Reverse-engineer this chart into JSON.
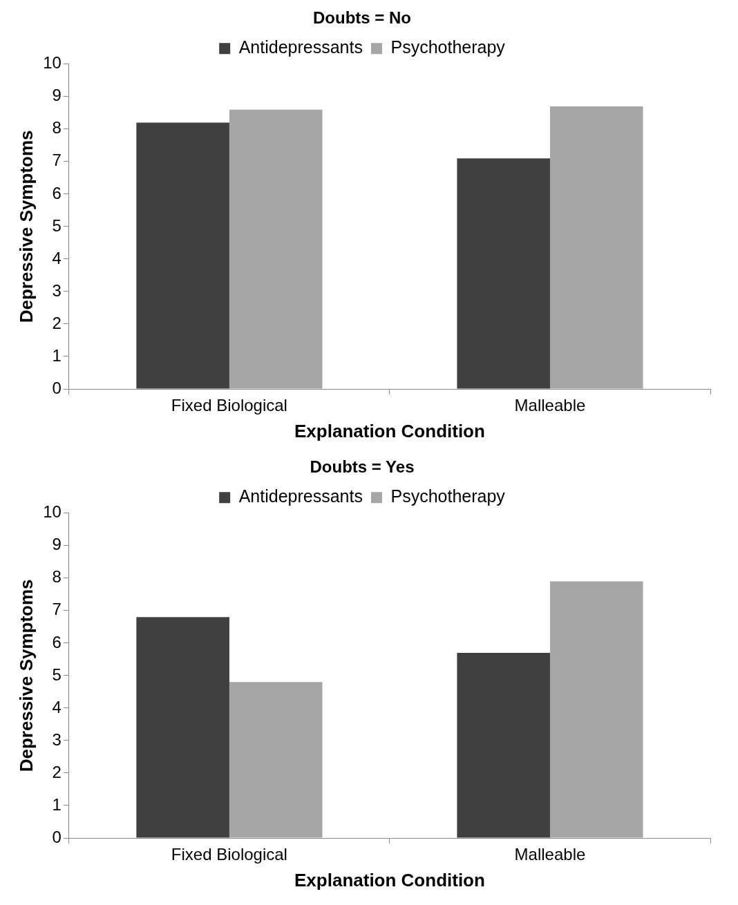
{
  "chart_data": [
    {
      "type": "bar",
      "title": "Doubts = No",
      "xlabel": "Explanation Condition",
      "ylabel": "Depressive Symptoms",
      "categories": [
        "Fixed Biological",
        "Malleable"
      ],
      "series": [
        {
          "name": "Antidepressants",
          "color": "#404040",
          "values": [
            8.2,
            7.1
          ]
        },
        {
          "name": "Psychotherapy",
          "color": "#a6a6a6",
          "values": [
            8.6,
            8.7
          ]
        }
      ],
      "ylim": [
        0,
        10
      ],
      "yticks": [
        0,
        1,
        2,
        3,
        4,
        5,
        6,
        7,
        8,
        9,
        10
      ],
      "grid": false,
      "legend": "top"
    },
    {
      "type": "bar",
      "title": "Doubts = Yes",
      "xlabel": "Explanation Condition",
      "ylabel": "Depressive Symptoms",
      "categories": [
        "Fixed Biological",
        "Malleable"
      ],
      "series": [
        {
          "name": "Antidepressants",
          "color": "#404040",
          "values": [
            6.8,
            5.7
          ]
        },
        {
          "name": "Psychotherapy",
          "color": "#a6a6a6",
          "values": [
            4.8,
            7.9
          ]
        }
      ],
      "ylim": [
        0,
        10
      ],
      "yticks": [
        0,
        1,
        2,
        3,
        4,
        5,
        6,
        7,
        8,
        9,
        10
      ],
      "grid": false,
      "legend": "top"
    }
  ]
}
